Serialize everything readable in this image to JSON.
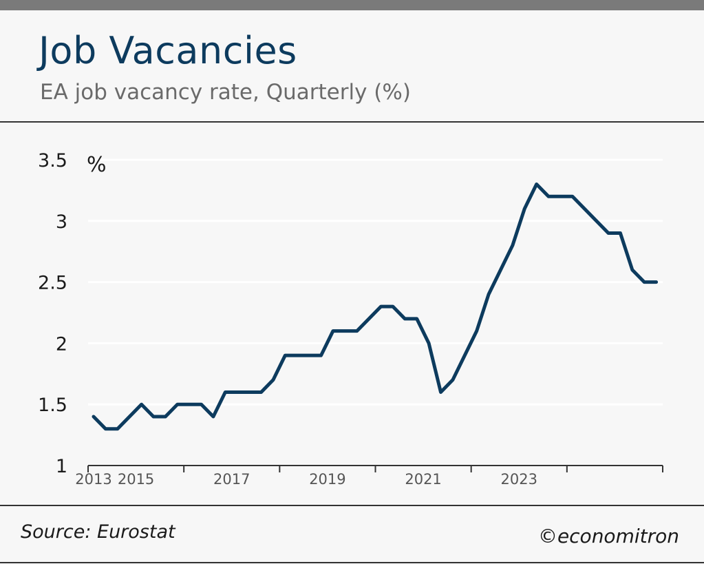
{
  "header": {
    "title": "Job Vacancies",
    "subtitle": "EA job vacancy rate, Quarterly (%)"
  },
  "footer": {
    "source": "Source: Eurostat",
    "credit": "©economitron"
  },
  "colors": {
    "line": "#0d3b5e",
    "title": "#0d3b5e",
    "grid": "#ffffff",
    "background": "#f7f7f7"
  },
  "chart_data": {
    "type": "line",
    "title": "Job Vacancies",
    "subtitle": "EA job vacancy rate, Quarterly (%)",
    "xlabel": "",
    "ylabel": "%",
    "ylim": [
      1,
      3.5
    ],
    "yticks": [
      "1",
      "1.5",
      "2",
      "2.5",
      "3",
      "3.5"
    ],
    "xticks": [
      "2013",
      "2015",
      "2017",
      "2019",
      "2021",
      "2023"
    ],
    "grid": true,
    "legend": "none",
    "series": [
      {
        "x": [
          "2013-Q1",
          "2013-Q2",
          "2013-Q3",
          "2013-Q4",
          "2014-Q1",
          "2014-Q2",
          "2014-Q3",
          "2014-Q4",
          "2015-Q1",
          "2015-Q2",
          "2015-Q3",
          "2015-Q4",
          "2016-Q1",
          "2016-Q2",
          "2016-Q3",
          "2016-Q4",
          "2017-Q1",
          "2017-Q2",
          "2017-Q3",
          "2017-Q4",
          "2018-Q1",
          "2018-Q2",
          "2018-Q3",
          "2018-Q4",
          "2019-Q1",
          "2019-Q2",
          "2019-Q3",
          "2019-Q4",
          "2020-Q1",
          "2020-Q2",
          "2020-Q3",
          "2020-Q4",
          "2021-Q1",
          "2021-Q2",
          "2021-Q3",
          "2021-Q4",
          "2022-Q1",
          "2022-Q2",
          "2022-Q3",
          "2022-Q4",
          "2023-Q1",
          "2023-Q2",
          "2023-Q3",
          "2023-Q4",
          "2024-Q1",
          "2024-Q2",
          "2024-Q3",
          "2024-Q4"
        ],
        "values": [
          1.4,
          1.3,
          1.3,
          1.4,
          1.5,
          1.4,
          1.4,
          1.5,
          1.5,
          1.5,
          1.4,
          1.6,
          1.6,
          1.6,
          1.6,
          1.7,
          1.9,
          1.9,
          1.9,
          1.9,
          2.1,
          2.1,
          2.1,
          2.2,
          2.3,
          2.3,
          2.2,
          2.2,
          2.0,
          1.6,
          1.7,
          1.9,
          2.1,
          2.4,
          2.6,
          2.8,
          3.1,
          3.3,
          3.2,
          3.2,
          3.2,
          3.1,
          3.0,
          2.9,
          2.9,
          2.6,
          2.5,
          2.5
        ]
      }
    ]
  }
}
